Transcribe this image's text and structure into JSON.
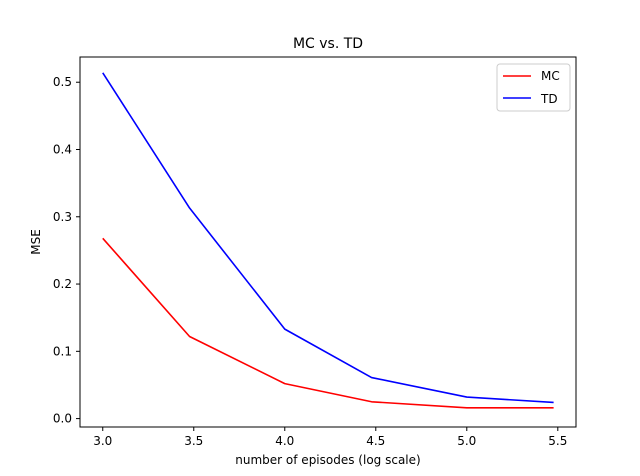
{
  "chart_data": {
    "type": "line",
    "title": "MC vs. TD",
    "xlabel": "number of episodes (log scale)",
    "ylabel": "MSE",
    "xlim": [
      2.875,
      5.6
    ],
    "ylim": [
      -0.0125,
      0.5375
    ],
    "x": [
      3.0,
      3.477,
      4.0,
      4.477,
      5.0,
      5.477
    ],
    "xticks": [
      3.0,
      3.5,
      4.0,
      4.5,
      5.0,
      5.5
    ],
    "xtick_labels": [
      "3.0",
      "3.5",
      "4.0",
      "4.5",
      "5.0",
      "5.5"
    ],
    "yticks": [
      0.0,
      0.1,
      0.2,
      0.3,
      0.4,
      0.5
    ],
    "ytick_labels": [
      "0.0",
      "0.1",
      "0.2",
      "0.3",
      "0.4",
      "0.5"
    ],
    "grid": false,
    "legend_position": "top-right",
    "series": [
      {
        "name": "MC",
        "color": "#ff0000",
        "values": [
          0.268,
          0.122,
          0.052,
          0.025,
          0.016,
          0.016
        ]
      },
      {
        "name": "TD",
        "color": "#0000ff",
        "values": [
          0.514,
          0.313,
          0.133,
          0.061,
          0.032,
          0.024
        ]
      }
    ]
  }
}
